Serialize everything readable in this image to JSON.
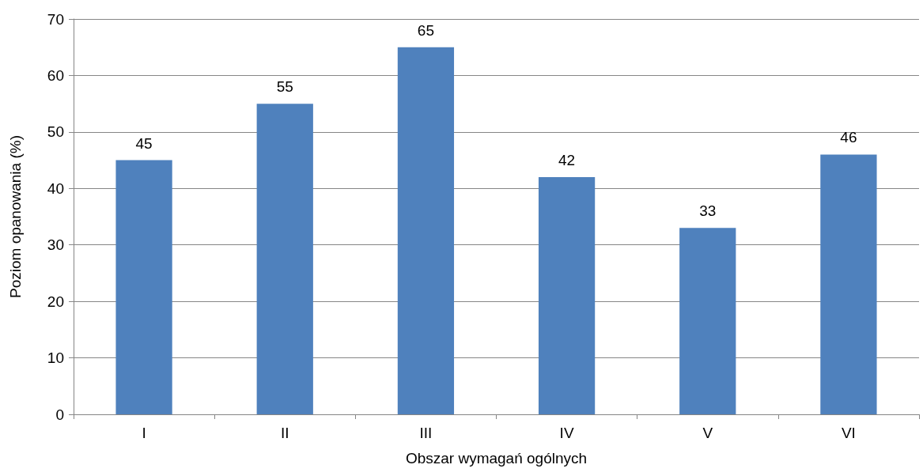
{
  "chart_data": {
    "type": "bar",
    "xlabel": "Obszar wymagań ogólnych",
    "ylabel": "Poziom opanowania (%)",
    "categories": [
      "I",
      "II",
      "III",
      "IV",
      "V",
      "VI"
    ],
    "values": [
      45,
      55,
      65,
      42,
      33,
      46
    ],
    "color": "#4f81bd",
    "ylim": [
      0,
      70
    ],
    "yticks": [
      0,
      10,
      20,
      30,
      40,
      50,
      60,
      70
    ],
    "grid": "y",
    "data_labels": true
  }
}
